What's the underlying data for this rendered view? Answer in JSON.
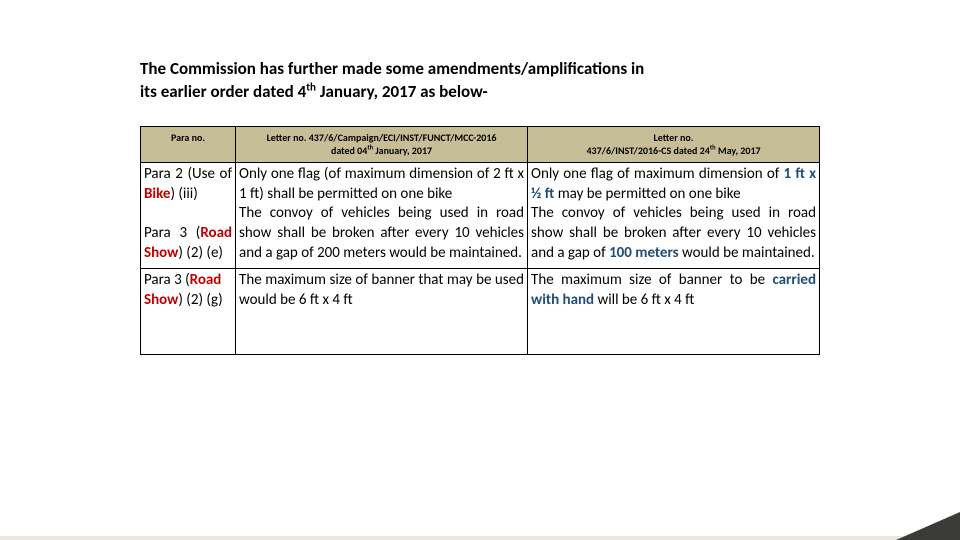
{
  "heading": {
    "line1": "The  Commission    has  further  made   some  amendments/amplifications in",
    "line2_a": "its  earlier order dated 4",
    "line2_sup": "th",
    "line2_b": " January, 2017 as below-"
  },
  "table": {
    "headers": {
      "c0": "Para no.",
      "c1_a": "Letter no. 437/6/Campaign/ECI/INST/FUNCT/MCC-2016",
      "c1_b": "dated 04",
      "c1_sup": "th",
      "c1_c": " January, 2017",
      "c2_a": "Letter no.",
      "c2_b": "437/6/INST/2016-CS dated 24",
      "c2_sup": "th",
      "c2_c": " May, 2017"
    },
    "r1": {
      "para_a": "Para 2 (Use of ",
      "para_b": "Bike",
      "para_c": ") (iii)",
      "old": "Only one flag (of maximum dimension of 2 ft x 1 ft) shall be permitted on one bike",
      "new_a": "Only one flag of maximum dimension of ",
      "new_b": "1 ft x ½ ft",
      "new_c": " may be permitted on one bike"
    },
    "r2": {
      "para_a": "Para 3 (",
      "para_b": "Road Show",
      "para_c": ") (2) (e)",
      "old": "The convoy of vehicles being used in road show shall be broken after every 10 vehicles and a gap of 200 meters would be maintained.",
      "new_a": "The convoy of vehicles being used in road show shall be broken after every 10 vehicles and a gap of ",
      "new_b": "100 meters",
      "new_c": " would be maintained."
    },
    "r3": {
      "para_a": "Para 3 (",
      "para_b": "Road Show",
      "para_c": ") (2) (g)",
      "old": "The maximum size of banner that may be used would be 6 ft x 4 ft",
      "new_a": "The maximum size of banner to be ",
      "new_b": "carried with hand",
      "new_c": " will be 6 ft x 4 ft"
    }
  },
  "colors": {
    "header_bg": "#c5be97",
    "red": "#c00000",
    "blue": "#1f4e79",
    "corner": "#3b3b39"
  }
}
